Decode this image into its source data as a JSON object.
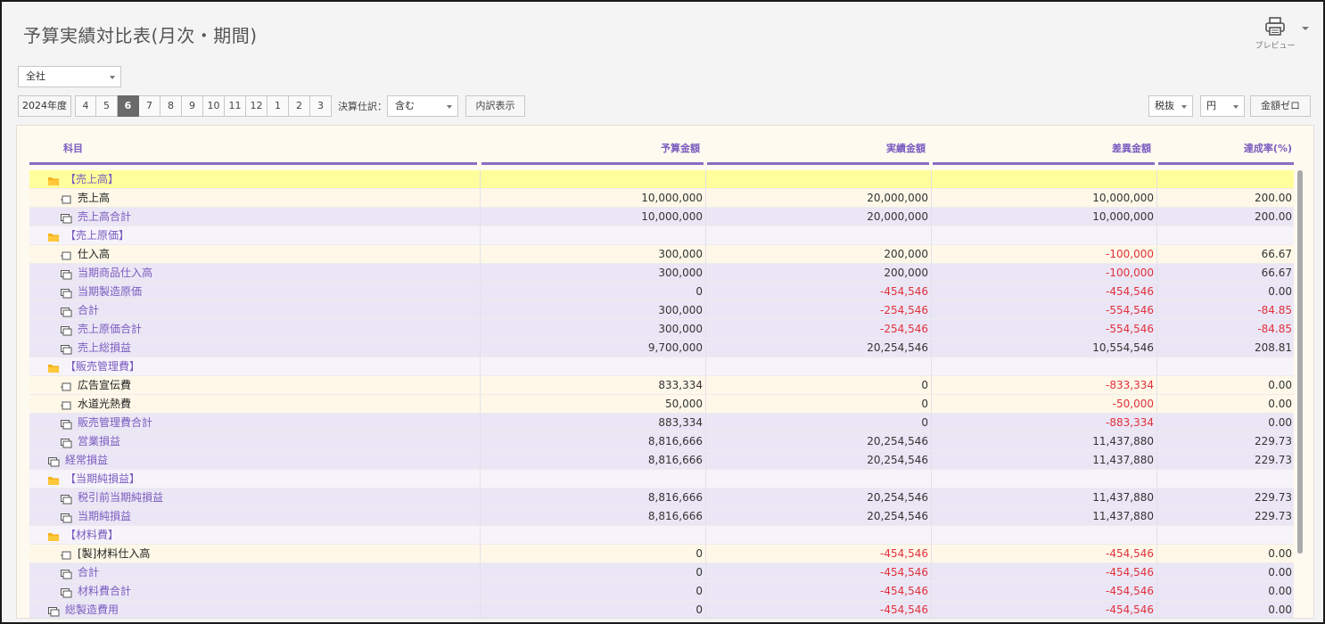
{
  "title": "予算実績対比表(月次・期間)",
  "preview": {
    "label": "プレビュー",
    "icon": "printer-icon"
  },
  "company_select": {
    "value": "全社"
  },
  "period": {
    "year_label": "2024年度",
    "months": [
      "4",
      "5",
      "6",
      "7",
      "8",
      "9",
      "10",
      "11",
      "12",
      "1",
      "2",
      "3"
    ],
    "active_month": "6"
  },
  "kessan": {
    "label": "決算仕訳：",
    "value": "含む"
  },
  "breakdown_button": "内訳表示",
  "tax_select": "税抜",
  "unit_select": "円",
  "zero_button": "金額ゼロ",
  "columns": [
    "科目",
    "予算金額",
    "実績金額",
    "差異金額",
    "達成率(%)"
  ],
  "rows": [
    {
      "type": "cat",
      "name": "【売上高】",
      "b": "",
      "a": "",
      "d": "",
      "r": "",
      "sel": true
    },
    {
      "type": "leaf",
      "name": "売上高",
      "b": "10,000,000",
      "a": "20,000,000",
      "d": "10,000,000",
      "r": "200.00"
    },
    {
      "type": "sum",
      "name": "売上高合計",
      "b": "10,000,000",
      "a": "20,000,000",
      "d": "10,000,000",
      "r": "200.00"
    },
    {
      "type": "cat",
      "name": "【売上原価】",
      "b": "",
      "a": "",
      "d": "",
      "r": ""
    },
    {
      "type": "leaf",
      "name": "仕入高",
      "b": "300,000",
      "a": "200,000",
      "d": "-100,000",
      "r": "66.67"
    },
    {
      "type": "sum",
      "name": "当期商品仕入高",
      "b": "300,000",
      "a": "200,000",
      "d": "-100,000",
      "r": "66.67"
    },
    {
      "type": "sum",
      "name": "当期製造原価",
      "b": "0",
      "a": "-454,546",
      "d": "-454,546",
      "r": "0.00"
    },
    {
      "type": "sum",
      "name": "合計",
      "b": "300,000",
      "a": "-254,546",
      "d": "-554,546",
      "r": "-84.85"
    },
    {
      "type": "sum",
      "name": "売上原価合計",
      "b": "300,000",
      "a": "-254,546",
      "d": "-554,546",
      "r": "-84.85"
    },
    {
      "type": "sum",
      "name": "売上総損益",
      "b": "9,700,000",
      "a": "20,254,546",
      "d": "10,554,546",
      "r": "208.81"
    },
    {
      "type": "cat",
      "name": "【販売管理費】",
      "b": "",
      "a": "",
      "d": "",
      "r": ""
    },
    {
      "type": "leaf",
      "name": "広告宣伝費",
      "b": "833,334",
      "a": "0",
      "d": "-833,334",
      "r": "0.00"
    },
    {
      "type": "leaf",
      "name": "水道光熱費",
      "b": "50,000",
      "a": "0",
      "d": "-50,000",
      "r": "0.00"
    },
    {
      "type": "sum",
      "name": "販売管理費合計",
      "b": "883,334",
      "a": "0",
      "d": "-883,334",
      "r": "0.00"
    },
    {
      "type": "sum",
      "name": "営業損益",
      "b": "8,816,666",
      "a": "20,254,546",
      "d": "11,437,880",
      "r": "229.73"
    },
    {
      "type": "sum",
      "name": "経常損益",
      "b": "8,816,666",
      "a": "20,254,546",
      "d": "11,437,880",
      "r": "229.73",
      "outer": true
    },
    {
      "type": "cat",
      "name": "【当期純損益】",
      "b": "",
      "a": "",
      "d": "",
      "r": ""
    },
    {
      "type": "sum",
      "name": "税引前当期純損益",
      "b": "8,816,666",
      "a": "20,254,546",
      "d": "11,437,880",
      "r": "229.73"
    },
    {
      "type": "sum",
      "name": "当期純損益",
      "b": "8,816,666",
      "a": "20,254,546",
      "d": "11,437,880",
      "r": "229.73"
    },
    {
      "type": "cat",
      "name": "【材料費】",
      "b": "",
      "a": "",
      "d": "",
      "r": ""
    },
    {
      "type": "leaf",
      "name": "[製]材料仕入高",
      "b": "0",
      "a": "-454,546",
      "d": "-454,546",
      "r": "0.00"
    },
    {
      "type": "sum",
      "name": "合計",
      "b": "0",
      "a": "-454,546",
      "d": "-454,546",
      "r": "0.00"
    },
    {
      "type": "sum",
      "name": "材料費合計",
      "b": "0",
      "a": "-454,546",
      "d": "-454,546",
      "r": "0.00"
    },
    {
      "type": "sum",
      "name": "総製造費用",
      "b": "0",
      "a": "-454,546",
      "d": "-454,546",
      "r": "0.00",
      "outer": true
    }
  ]
}
